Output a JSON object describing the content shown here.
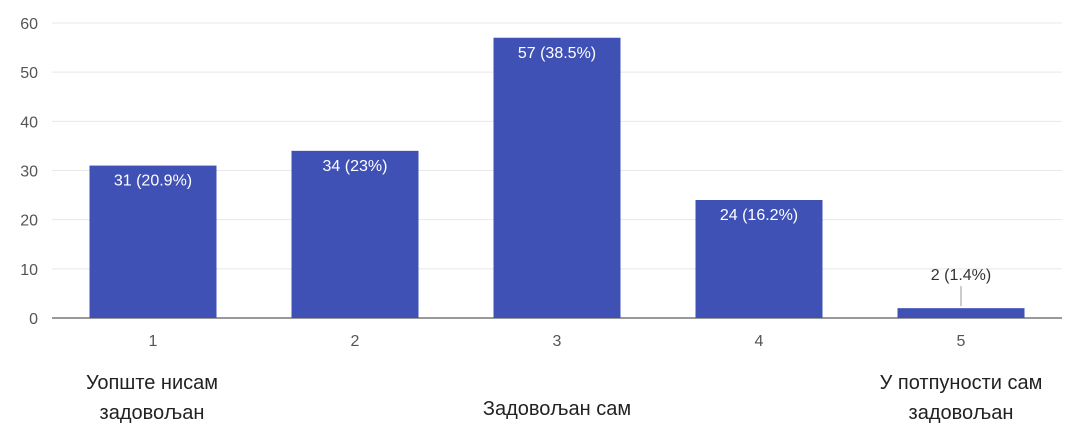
{
  "chart_data": {
    "type": "bar",
    "categories": [
      "1",
      "2",
      "3",
      "4",
      "5"
    ],
    "values": [
      31,
      34,
      57,
      24,
      2
    ],
    "data_labels": [
      "31 (20.9%)",
      "34 (23%)",
      "57 (38.5%)",
      "24 (16.2%)",
      "2 (1.4%)"
    ],
    "ylim": [
      0,
      60
    ],
    "yticks": [
      "0",
      "10",
      "20",
      "30",
      "40",
      "50",
      "60"
    ],
    "bar_color": "#3f51b5",
    "grid": true,
    "title": "",
    "xlabel": "",
    "ylabel": ""
  },
  "captions": {
    "left": [
      "Уопште нисам",
      "задовољан"
    ],
    "middle": [
      "Задовољан сам"
    ],
    "right": [
      "У потпуности сам",
      "задовољан"
    ]
  }
}
